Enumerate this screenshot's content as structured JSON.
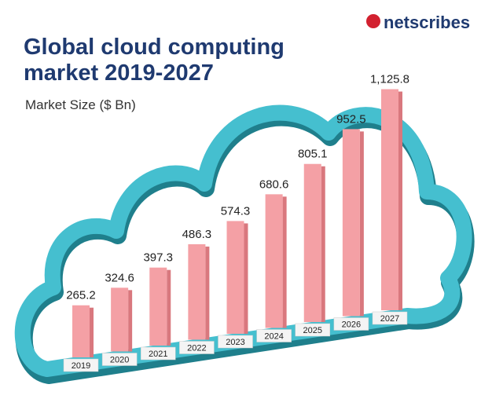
{
  "logo": "netscribes",
  "chart_data": {
    "type": "bar",
    "title": "Global cloud computing market 2019-2027",
    "subtitle": "Market Size ($ Bn)",
    "categories": [
      "2019",
      "2020",
      "2021",
      "2022",
      "2023",
      "2024",
      "2025",
      "2026",
      "2027"
    ],
    "values": [
      265.2,
      324.6,
      397.3,
      486.3,
      574.3,
      680.6,
      805.1,
      952.5,
      1125.8
    ],
    "value_labels": [
      "265.2",
      "324.6",
      "397.3",
      "486.3",
      "574.3",
      "680.6",
      "805.1",
      "952.5",
      "1,125.8"
    ],
    "color": "#f4a0a5"
  }
}
